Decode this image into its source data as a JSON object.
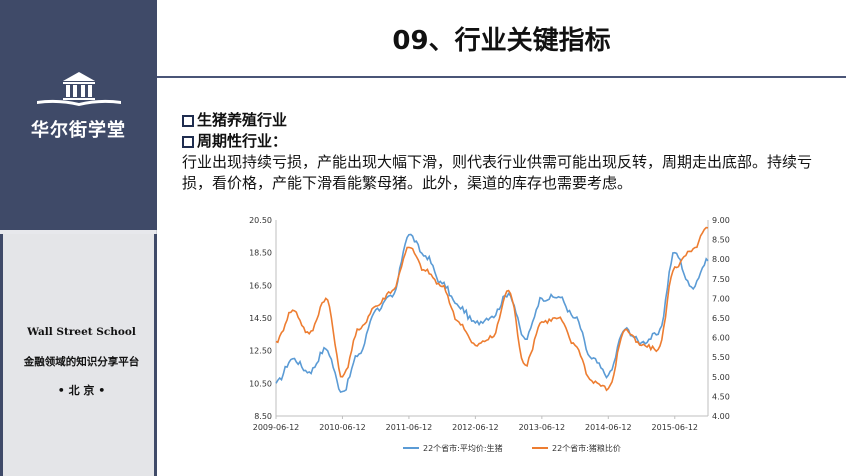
{
  "sidebar": {
    "brand_name": "华尔街学堂",
    "logo_icon": "building-book-icon",
    "school_en": "Wall Street School",
    "slogan": "金融领域的知识分享平台",
    "city": "• 北 京 •"
  },
  "slide": {
    "title": "09、行业关键指标",
    "bullet1": "生猪养殖行业",
    "bullet2": "周期性行业：",
    "paragraph": "行业出现持续亏损，产能出现大幅下滑，则代表行业供需可能出现反转，周期走出底部。持续亏损，看价格，产能下滑看能繁母猪。此外，渠道的库存也需要考虑。"
  },
  "chart_data": {
    "type": "line",
    "x": [
      "2009-06-12",
      "2009-09-12",
      "2009-12-12",
      "2010-03-12",
      "2010-06-12",
      "2010-09-12",
      "2010-12-12",
      "2011-03-12",
      "2011-06-12",
      "2011-09-12",
      "2011-12-12",
      "2012-03-12",
      "2012-06-12",
      "2012-09-12",
      "2012-12-12",
      "2013-03-12",
      "2013-06-12",
      "2013-09-12",
      "2013-12-12",
      "2014-03-12",
      "2014-06-12",
      "2014-09-12",
      "2014-12-12",
      "2015-03-12",
      "2015-06-12",
      "2015-09-12",
      "2015-12-12"
    ],
    "x_tick_labels": [
      "2009-06-12",
      "2010-06-12",
      "2011-06-12",
      "2012-06-12",
      "2013-06-12",
      "2014-06-12",
      "2015-06-12"
    ],
    "y_left_ticks": [
      "20.50",
      "18.50",
      "16.50",
      "14.50",
      "12.50",
      "10.50",
      "8.50"
    ],
    "y_right_ticks": [
      "9.00",
      "8.50",
      "8.00",
      "7.50",
      "7.00",
      "6.50",
      "6.00",
      "5.50",
      "5.00",
      "4.50",
      "4.00"
    ],
    "ylim_left": [
      8.5,
      20.5
    ],
    "ylim_right": [
      4.0,
      9.0
    ],
    "series": [
      {
        "name": "22个省市:平均价:生猪",
        "axis": "left",
        "color": "#5b9bd5",
        "values": [
          10.5,
          12.0,
          11.2,
          12.6,
          10.0,
          12.3,
          15.0,
          15.8,
          19.6,
          18.3,
          16.6,
          15.2,
          14.2,
          14.6,
          16.0,
          13.2,
          15.7,
          15.8,
          14.5,
          12.0,
          11.0,
          13.8,
          13.0,
          13.5,
          18.5,
          16.4,
          18.0
        ]
      },
      {
        "name": "22个省市:猪粮比价",
        "axis": "right",
        "color": "#ed7d31",
        "values": [
          5.9,
          6.7,
          6.1,
          7.0,
          5.0,
          6.2,
          6.8,
          7.2,
          8.3,
          7.7,
          7.3,
          6.4,
          5.8,
          6.0,
          7.2,
          5.3,
          6.4,
          6.5,
          5.8,
          4.9,
          4.7,
          6.2,
          5.8,
          5.7,
          7.8,
          8.2,
          8.8
        ]
      }
    ],
    "legend_position": "bottom",
    "grid": false
  }
}
